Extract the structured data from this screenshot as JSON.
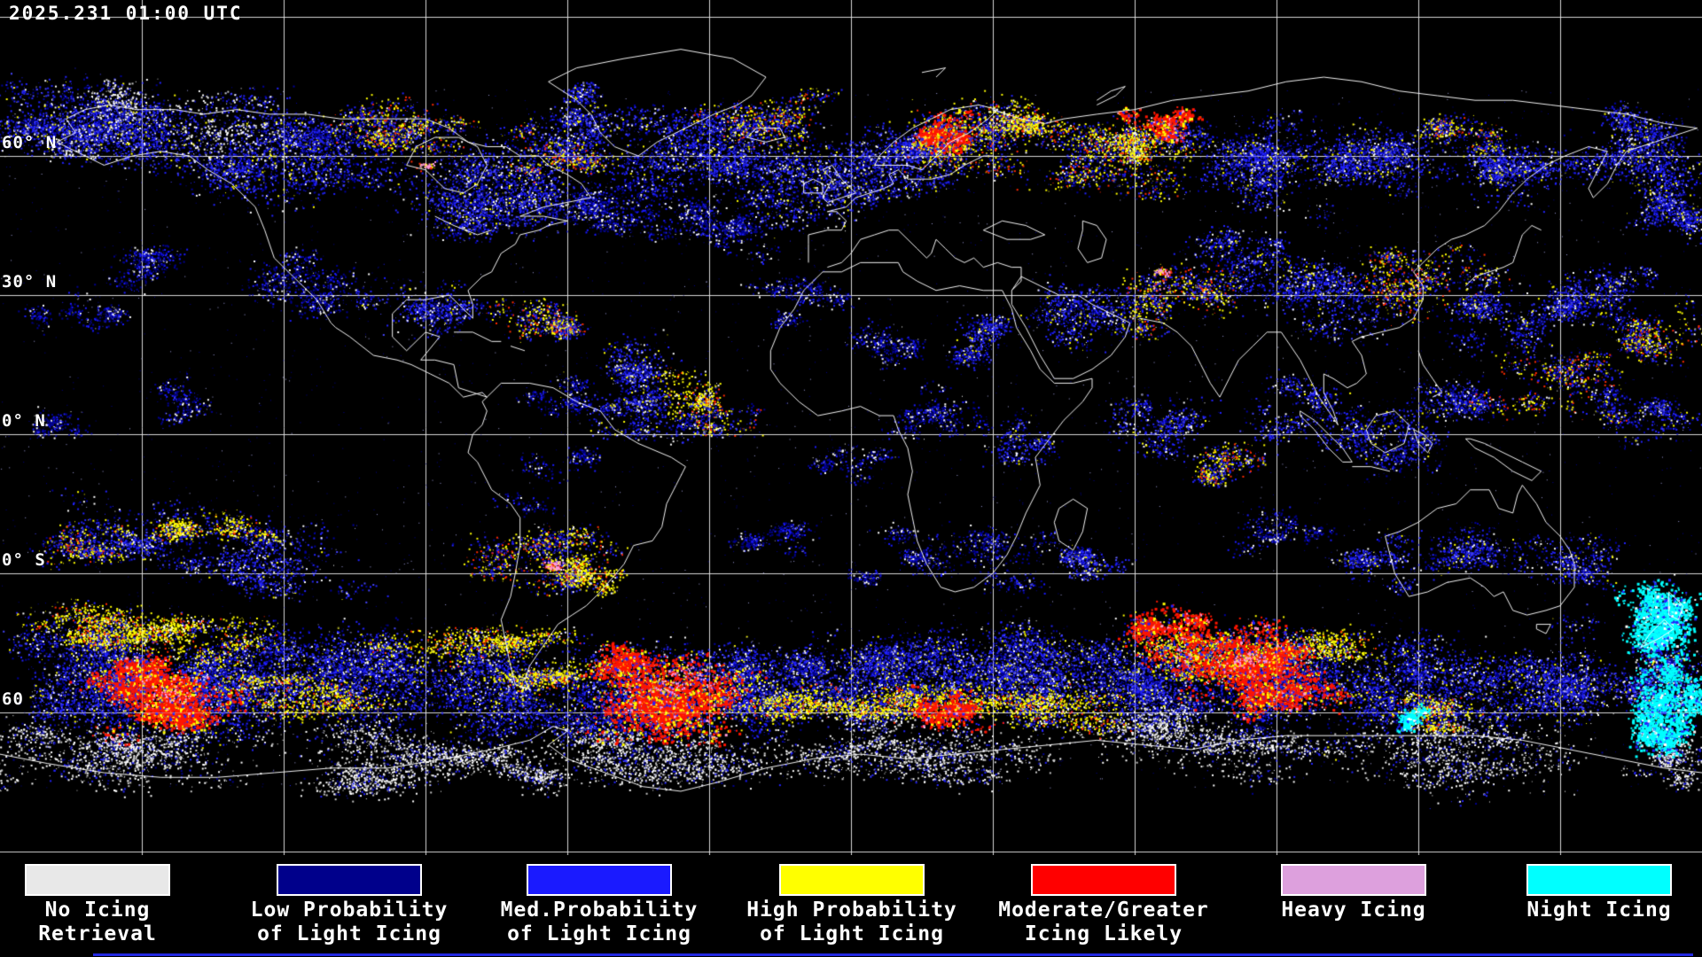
{
  "header": {
    "timestamp": "2025.231 01:00 UTC"
  },
  "map": {
    "lat_labels": [
      {
        "text": "60° N"
      },
      {
        "text": "30° N"
      },
      {
        "text": "0° N"
      },
      {
        "text": "0° S"
      },
      {
        "text": "60"
      }
    ]
  },
  "legend": {
    "items": [
      {
        "name": "no-icing-retrieval",
        "color": "#e8e8e8",
        "line1": "No Icing",
        "line2": "Retrieval"
      },
      {
        "name": "low-prob-light",
        "color": "#00008b",
        "line1": "Low Probability",
        "line2": "of Light Icing"
      },
      {
        "name": "med-prob-light",
        "color": "#1a1aff",
        "line1": "Med.Probability",
        "line2": "of Light Icing"
      },
      {
        "name": "high-prob-light",
        "color": "#ffff00",
        "line1": "High Probability",
        "line2": "of Light Icing"
      },
      {
        "name": "moderate-greater",
        "color": "#ff0000",
        "line1": "Moderate/Greater",
        "line2": "Icing Likely"
      },
      {
        "name": "heavy-icing",
        "color": "#dda0dd",
        "line1": "Heavy Icing",
        "line2": ""
      },
      {
        "name": "night-icing",
        "color": "#00ffff",
        "line1": "Night Icing",
        "line2": ""
      }
    ]
  }
}
